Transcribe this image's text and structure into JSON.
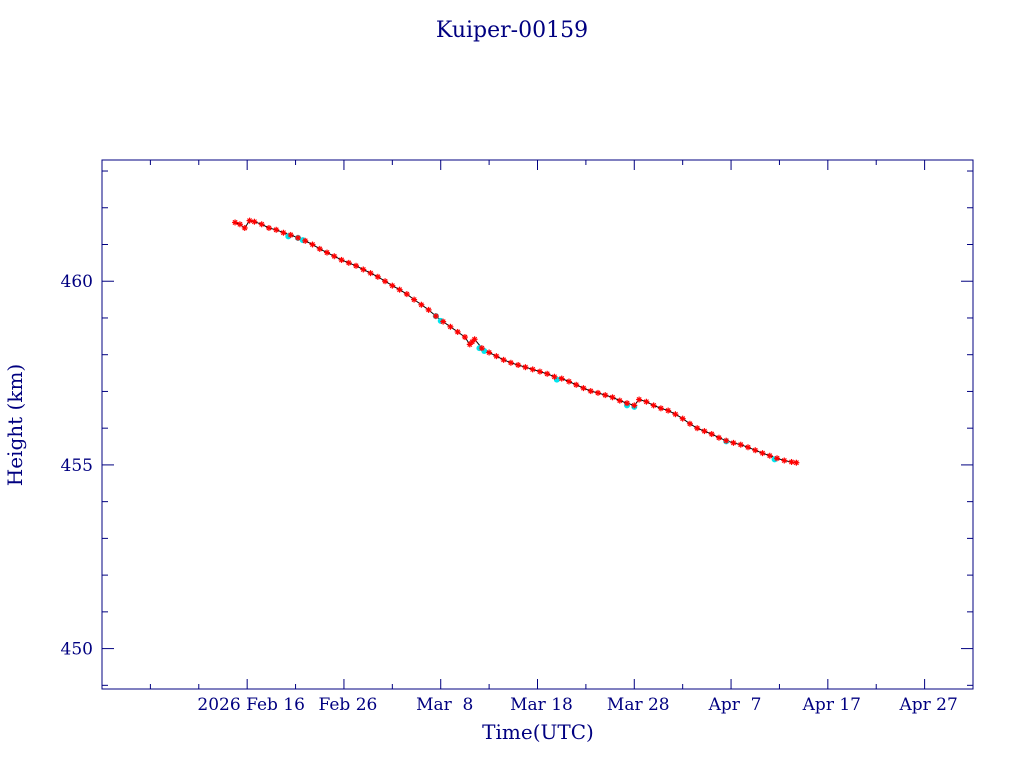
{
  "chart_data": {
    "type": "scatter",
    "title": "Kuiper-00159",
    "xlabel": "Time(UTC)",
    "ylabel": "Height (km)",
    "x_range": [
      "2026-02-01",
      "2026-05-02"
    ],
    "ylim": [
      448.9,
      463.3
    ],
    "x_ticks": [
      {
        "date": "2026-02-16",
        "label": "2026 Feb 16"
      },
      {
        "date": "2026-02-26",
        "label": "Feb 26"
      },
      {
        "date": "2026-03-08",
        "label": "Mar  8"
      },
      {
        "date": "2026-03-18",
        "label": "Mar 18"
      },
      {
        "date": "2026-03-28",
        "label": "Mar 28"
      },
      {
        "date": "2026-04-07",
        "label": "Apr  7"
      },
      {
        "date": "2026-04-17",
        "label": "Apr 17"
      },
      {
        "date": "2026-04-27",
        "label": "Apr 27"
      }
    ],
    "y_ticks": [
      450,
      455,
      460
    ],
    "grid": false,
    "colors": {
      "axes": "#000080",
      "primary": "#ff0000",
      "secondary": "#00e5ee",
      "line": "#000000"
    },
    "series": [
      {
        "marker": "asterisk",
        "color": "#ff0000",
        "points": [
          [
            "2026-02-14T18:00",
            461.6
          ],
          [
            "2026-02-15T06:00",
            461.55
          ],
          [
            "2026-02-15T18:00",
            461.45
          ],
          [
            "2026-02-16T06:00",
            461.65
          ],
          [
            "2026-02-16T18:00",
            461.62
          ],
          [
            "2026-02-17T12:00",
            461.55
          ],
          [
            "2026-02-18T06:00",
            461.45
          ],
          [
            "2026-02-19T00:00",
            461.4
          ],
          [
            "2026-02-19T18:00",
            461.32
          ],
          [
            "2026-02-20T12:00",
            461.26
          ],
          [
            "2026-02-21T06:00",
            461.18
          ],
          [
            "2026-02-22T00:00",
            461.1
          ],
          [
            "2026-02-22T18:00",
            461.0
          ],
          [
            "2026-02-23T12:00",
            460.88
          ],
          [
            "2026-02-24T06:00",
            460.78
          ],
          [
            "2026-02-25T00:00",
            460.68
          ],
          [
            "2026-02-25T18:00",
            460.58
          ],
          [
            "2026-02-26T12:00",
            460.5
          ],
          [
            "2026-02-27T06:00",
            460.42
          ],
          [
            "2026-02-28T00:00",
            460.32
          ],
          [
            "2026-02-28T18:00",
            460.22
          ],
          [
            "2026-03-01T12:00",
            460.12
          ],
          [
            "2026-03-02T06:00",
            460.0
          ],
          [
            "2026-03-03T00:00",
            459.88
          ],
          [
            "2026-03-03T18:00",
            459.77
          ],
          [
            "2026-03-04T12:00",
            459.65
          ],
          [
            "2026-03-05T06:00",
            459.5
          ],
          [
            "2026-03-06T00:00",
            459.36
          ],
          [
            "2026-03-06T18:00",
            459.22
          ],
          [
            "2026-03-07T12:00",
            459.05
          ],
          [
            "2026-03-08T06:00",
            458.9
          ],
          [
            "2026-03-09T00:00",
            458.76
          ],
          [
            "2026-03-09T18:00",
            458.62
          ],
          [
            "2026-03-10T12:00",
            458.48
          ],
          [
            "2026-03-11T00:00",
            458.28
          ],
          [
            "2026-03-11T06:00",
            458.35
          ],
          [
            "2026-03-11T12:00",
            458.42
          ],
          [
            "2026-03-12T06:00",
            458.18
          ],
          [
            "2026-03-13T00:00",
            458.06
          ],
          [
            "2026-03-13T18:00",
            457.96
          ],
          [
            "2026-03-14T12:00",
            457.86
          ],
          [
            "2026-03-15T06:00",
            457.78
          ],
          [
            "2026-03-16T00:00",
            457.72
          ],
          [
            "2026-03-16T18:00",
            457.66
          ],
          [
            "2026-03-17T12:00",
            457.6
          ],
          [
            "2026-03-18T06:00",
            457.54
          ],
          [
            "2026-03-19T00:00",
            457.48
          ],
          [
            "2026-03-19T18:00",
            457.4
          ],
          [
            "2026-03-20T12:00",
            457.35
          ],
          [
            "2026-03-21T06:00",
            457.27
          ],
          [
            "2026-03-22T00:00",
            457.18
          ],
          [
            "2026-03-22T18:00",
            457.09
          ],
          [
            "2026-03-23T12:00",
            457.01
          ],
          [
            "2026-03-24T06:00",
            456.96
          ],
          [
            "2026-03-25T00:00",
            456.9
          ],
          [
            "2026-03-25T18:00",
            456.84
          ],
          [
            "2026-03-26T12:00",
            456.75
          ],
          [
            "2026-03-27T06:00",
            456.68
          ],
          [
            "2026-03-28T00:00",
            456.62
          ],
          [
            "2026-03-28T12:00",
            456.78
          ],
          [
            "2026-03-29T06:00",
            456.72
          ],
          [
            "2026-03-30T00:00",
            456.62
          ],
          [
            "2026-03-30T18:00",
            456.54
          ],
          [
            "2026-03-31T12:00",
            456.48
          ],
          [
            "2026-04-01T06:00",
            456.38
          ],
          [
            "2026-04-02T00:00",
            456.26
          ],
          [
            "2026-04-02T18:00",
            456.12
          ],
          [
            "2026-04-03T12:00",
            456.0
          ],
          [
            "2026-04-04T06:00",
            455.92
          ],
          [
            "2026-04-05T00:00",
            455.84
          ],
          [
            "2026-04-05T18:00",
            455.74
          ],
          [
            "2026-04-06T12:00",
            455.66
          ],
          [
            "2026-04-07T06:00",
            455.6
          ],
          [
            "2026-04-08T00:00",
            455.55
          ],
          [
            "2026-04-08T18:00",
            455.48
          ],
          [
            "2026-04-09T12:00",
            455.4
          ],
          [
            "2026-04-10T06:00",
            455.32
          ],
          [
            "2026-04-11T00:00",
            455.25
          ],
          [
            "2026-04-11T18:00",
            455.18
          ],
          [
            "2026-04-12T12:00",
            455.12
          ],
          [
            "2026-04-13T06:00",
            455.08
          ],
          [
            "2026-04-13T18:00",
            455.06
          ]
        ]
      },
      {
        "marker": "dot",
        "color": "#00e5ee",
        "points": [
          [
            "2026-02-20T06:00",
            461.22
          ],
          [
            "2026-02-21T06:00",
            461.18
          ],
          [
            "2026-02-21T18:00",
            461.12
          ],
          [
            "2026-03-07T12:00",
            459.05
          ],
          [
            "2026-03-08T00:00",
            458.92
          ],
          [
            "2026-03-12T00:00",
            458.18
          ],
          [
            "2026-03-12T12:00",
            458.1
          ],
          [
            "2026-03-20T00:00",
            457.32
          ],
          [
            "2026-03-27T06:00",
            456.62
          ],
          [
            "2026-03-28T00:00",
            456.58
          ],
          [
            "2026-04-06T12:00",
            455.64
          ],
          [
            "2026-04-11T12:00",
            455.15
          ]
        ]
      }
    ]
  }
}
